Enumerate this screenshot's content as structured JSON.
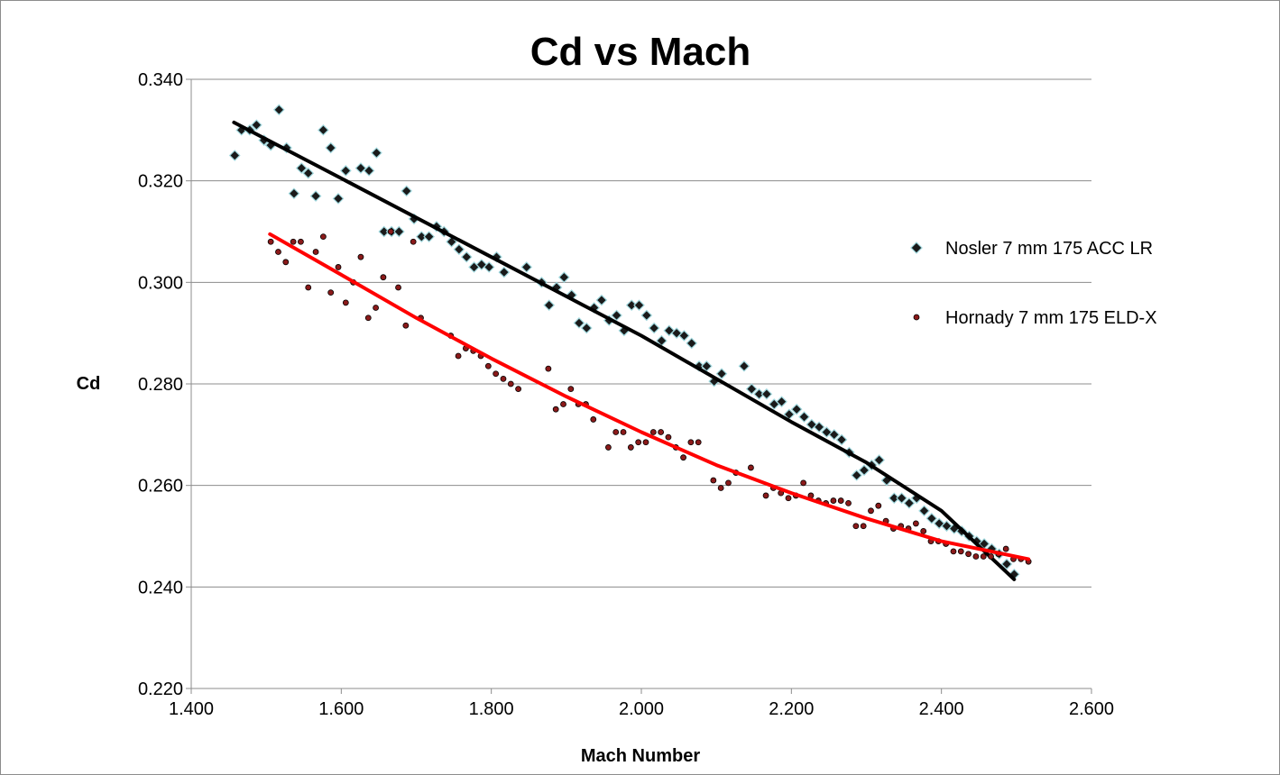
{
  "chart_data": {
    "type": "scatter",
    "title": "Cd vs Mach",
    "xlabel": "Mach Number",
    "ylabel": "Cd",
    "xlim": [
      1.4,
      2.6
    ],
    "ylim": [
      0.22,
      0.34
    ],
    "x_ticks": [
      "1.400",
      "1.600",
      "1.800",
      "2.000",
      "2.200",
      "2.400",
      "2.600"
    ],
    "y_ticks": [
      "0.220",
      "0.240",
      "0.260",
      "0.280",
      "0.300",
      "0.320",
      "0.340"
    ],
    "grid": "horizontal",
    "legend_position": "right",
    "series": [
      {
        "name": "Nosler 7 mm 175 ACC LR",
        "marker": "diamond",
        "color": "#1a1a1a",
        "marker_edge": "#9fd6dc",
        "trendline_color": "#000000",
        "trendline": [
          [
            1.457,
            0.3315
          ],
          [
            1.6,
            0.3205
          ],
          [
            1.8,
            0.305
          ],
          [
            2.0,
            0.2895
          ],
          [
            2.2,
            0.2725
          ],
          [
            2.3,
            0.2645
          ],
          [
            2.4,
            0.255
          ],
          [
            2.497,
            0.2415
          ]
        ],
        "points": [
          [
            1.458,
            0.325
          ],
          [
            1.467,
            0.33
          ],
          [
            1.478,
            0.33
          ],
          [
            1.487,
            0.331
          ],
          [
            1.497,
            0.328
          ],
          [
            1.506,
            0.327
          ],
          [
            1.517,
            0.334
          ],
          [
            1.527,
            0.3265
          ],
          [
            1.537,
            0.3175
          ],
          [
            1.547,
            0.3225
          ],
          [
            1.556,
            0.3215
          ],
          [
            1.566,
            0.317
          ],
          [
            1.576,
            0.33
          ],
          [
            1.586,
            0.3265
          ],
          [
            1.596,
            0.3165
          ],
          [
            1.606,
            0.322
          ],
          [
            1.626,
            0.3225
          ],
          [
            1.637,
            0.322
          ],
          [
            1.647,
            0.3255
          ],
          [
            1.657,
            0.31
          ],
          [
            1.667,
            0.31
          ],
          [
            1.677,
            0.31
          ],
          [
            1.687,
            0.318
          ],
          [
            1.697,
            0.3125
          ],
          [
            1.707,
            0.309
          ],
          [
            1.717,
            0.309
          ],
          [
            1.727,
            0.311
          ],
          [
            1.737,
            0.31
          ],
          [
            1.747,
            0.308
          ],
          [
            1.757,
            0.3065
          ],
          [
            1.767,
            0.305
          ],
          [
            1.777,
            0.303
          ],
          [
            1.787,
            0.3035
          ],
          [
            1.797,
            0.303
          ],
          [
            1.807,
            0.305
          ],
          [
            1.817,
            0.302
          ],
          [
            1.847,
            0.303
          ],
          [
            1.867,
            0.3
          ],
          [
            1.877,
            0.2955
          ],
          [
            1.887,
            0.299
          ],
          [
            1.897,
            0.301
          ],
          [
            1.907,
            0.2975
          ],
          [
            1.917,
            0.292
          ],
          [
            1.927,
            0.291
          ],
          [
            1.937,
            0.295
          ],
          [
            1.947,
            0.2965
          ],
          [
            1.957,
            0.2925
          ],
          [
            1.967,
            0.2935
          ],
          [
            1.977,
            0.2905
          ],
          [
            1.987,
            0.2955
          ],
          [
            1.997,
            0.2955
          ],
          [
            2.007,
            0.2935
          ],
          [
            2.017,
            0.291
          ],
          [
            2.027,
            0.2885
          ],
          [
            2.037,
            0.2905
          ],
          [
            2.047,
            0.29
          ],
          [
            2.057,
            0.2895
          ],
          [
            2.067,
            0.288
          ],
          [
            2.077,
            0.2835
          ],
          [
            2.087,
            0.2835
          ],
          [
            2.097,
            0.2805
          ],
          [
            2.107,
            0.282
          ],
          [
            2.137,
            0.2835
          ],
          [
            2.147,
            0.279
          ],
          [
            2.157,
            0.278
          ],
          [
            2.167,
            0.278
          ],
          [
            2.177,
            0.276
          ],
          [
            2.187,
            0.2765
          ],
          [
            2.197,
            0.274
          ],
          [
            2.207,
            0.275
          ],
          [
            2.217,
            0.2735
          ],
          [
            2.227,
            0.272
          ],
          [
            2.237,
            0.2715
          ],
          [
            2.247,
            0.2705
          ],
          [
            2.257,
            0.27
          ],
          [
            2.267,
            0.269
          ],
          [
            2.277,
            0.2665
          ],
          [
            2.287,
            0.262
          ],
          [
            2.297,
            0.263
          ],
          [
            2.307,
            0.264
          ],
          [
            2.317,
            0.265
          ],
          [
            2.327,
            0.261
          ],
          [
            2.337,
            0.2575
          ],
          [
            2.347,
            0.2575
          ],
          [
            2.357,
            0.2565
          ],
          [
            2.367,
            0.2575
          ],
          [
            2.377,
            0.255
          ],
          [
            2.387,
            0.2535
          ],
          [
            2.397,
            0.2525
          ],
          [
            2.407,
            0.252
          ],
          [
            2.417,
            0.2515
          ],
          [
            2.427,
            0.251
          ],
          [
            2.437,
            0.25
          ],
          [
            2.447,
            0.249
          ],
          [
            2.457,
            0.2485
          ],
          [
            2.467,
            0.2475
          ],
          [
            2.477,
            0.2465
          ],
          [
            2.487,
            0.2445
          ],
          [
            2.497,
            0.2425
          ]
        ]
      },
      {
        "name": "Hornady 7 mm 175 ELD-X",
        "marker": "circle",
        "color": "#8b1a1a",
        "marker_edge": "#000000",
        "trendline_color": "#ff0000",
        "trendline": [
          [
            1.505,
            0.3095
          ],
          [
            1.6,
            0.3015
          ],
          [
            1.7,
            0.293
          ],
          [
            1.8,
            0.285
          ],
          [
            1.9,
            0.2775
          ],
          [
            2.0,
            0.2705
          ],
          [
            2.1,
            0.264
          ],
          [
            2.2,
            0.2585
          ],
          [
            2.3,
            0.2535
          ],
          [
            2.4,
            0.249
          ],
          [
            2.516,
            0.2455
          ]
        ],
        "points": [
          [
            1.506,
            0.308
          ],
          [
            1.516,
            0.306
          ],
          [
            1.526,
            0.304
          ],
          [
            1.536,
            0.308
          ],
          [
            1.546,
            0.308
          ],
          [
            1.556,
            0.299
          ],
          [
            1.566,
            0.306
          ],
          [
            1.576,
            0.309
          ],
          [
            1.586,
            0.298
          ],
          [
            1.596,
            0.303
          ],
          [
            1.606,
            0.296
          ],
          [
            1.616,
            0.3
          ],
          [
            1.626,
            0.305
          ],
          [
            1.636,
            0.293
          ],
          [
            1.646,
            0.295
          ],
          [
            1.656,
            0.301
          ],
          [
            1.666,
            0.31
          ],
          [
            1.676,
            0.299
          ],
          [
            1.686,
            0.2915
          ],
          [
            1.696,
            0.308
          ],
          [
            1.706,
            0.293
          ],
          [
            1.746,
            0.2895
          ],
          [
            1.756,
            0.2855
          ],
          [
            1.766,
            0.287
          ],
          [
            1.776,
            0.2865
          ],
          [
            1.786,
            0.2855
          ],
          [
            1.796,
            0.2835
          ],
          [
            1.806,
            0.282
          ],
          [
            1.816,
            0.281
          ],
          [
            1.826,
            0.28
          ],
          [
            1.836,
            0.279
          ],
          [
            1.876,
            0.283
          ],
          [
            1.886,
            0.275
          ],
          [
            1.896,
            0.276
          ],
          [
            1.906,
            0.279
          ],
          [
            1.916,
            0.276
          ],
          [
            1.926,
            0.276
          ],
          [
            1.936,
            0.273
          ],
          [
            1.956,
            0.2675
          ],
          [
            1.966,
            0.2705
          ],
          [
            1.976,
            0.2705
          ],
          [
            1.986,
            0.2675
          ],
          [
            1.996,
            0.2685
          ],
          [
            2.006,
            0.2685
          ],
          [
            2.016,
            0.2705
          ],
          [
            2.026,
            0.2705
          ],
          [
            2.036,
            0.2695
          ],
          [
            2.046,
            0.2675
          ],
          [
            2.056,
            0.2655
          ],
          [
            2.066,
            0.2685
          ],
          [
            2.076,
            0.2685
          ],
          [
            2.096,
            0.261
          ],
          [
            2.106,
            0.2595
          ],
          [
            2.116,
            0.2605
          ],
          [
            2.126,
            0.2625
          ],
          [
            2.146,
            0.2635
          ],
          [
            2.166,
            0.258
          ],
          [
            2.176,
            0.2595
          ],
          [
            2.186,
            0.2585
          ],
          [
            2.196,
            0.2575
          ],
          [
            2.206,
            0.258
          ],
          [
            2.216,
            0.2605
          ],
          [
            2.226,
            0.258
          ],
          [
            2.236,
            0.257
          ],
          [
            2.246,
            0.2565
          ],
          [
            2.256,
            0.257
          ],
          [
            2.266,
            0.257
          ],
          [
            2.276,
            0.2565
          ],
          [
            2.286,
            0.252
          ],
          [
            2.296,
            0.252
          ],
          [
            2.306,
            0.255
          ],
          [
            2.316,
            0.256
          ],
          [
            2.326,
            0.253
          ],
          [
            2.336,
            0.2515
          ],
          [
            2.346,
            0.252
          ],
          [
            2.356,
            0.2515
          ],
          [
            2.366,
            0.2525
          ],
          [
            2.376,
            0.251
          ],
          [
            2.386,
            0.249
          ],
          [
            2.396,
            0.249
          ],
          [
            2.406,
            0.2485
          ],
          [
            2.416,
            0.247
          ],
          [
            2.426,
            0.247
          ],
          [
            2.436,
            0.2465
          ],
          [
            2.446,
            0.246
          ],
          [
            2.456,
            0.246
          ],
          [
            2.466,
            0.246
          ],
          [
            2.476,
            0.2465
          ],
          [
            2.486,
            0.2475
          ],
          [
            2.496,
            0.2455
          ],
          [
            2.506,
            0.2455
          ],
          [
            2.516,
            0.245
          ]
        ]
      }
    ]
  }
}
